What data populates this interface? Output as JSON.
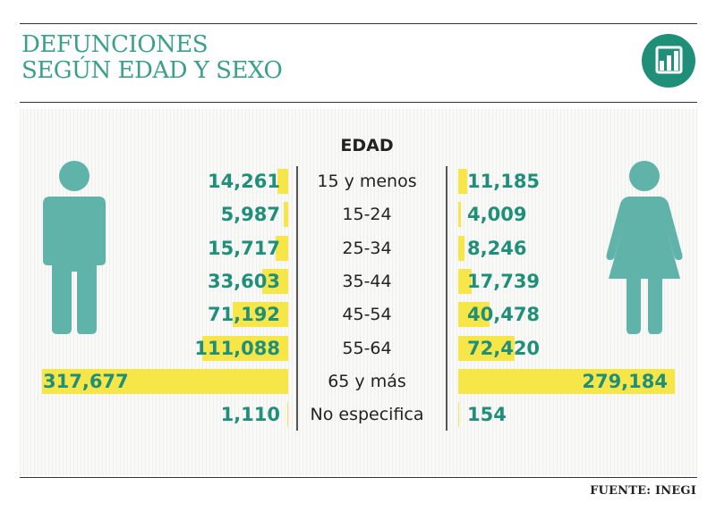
{
  "title": {
    "line1": "DEFUNCIONES",
    "line2": "SEGÚN EDAD Y SEXO"
  },
  "icon": {
    "name": "bar-chart-icon",
    "bg": "#1f8f78"
  },
  "colors": {
    "accent": "#3aa08c",
    "value": "#1f8f7a",
    "bar": "#f7e647",
    "figure": "#5fb3a9"
  },
  "source": "FUENTE: INEGI",
  "chart_data": {
    "type": "bar",
    "orientation": "horizontal",
    "category_header": "EDAD",
    "categories": [
      "15 y menos",
      "15-24",
      "25-34",
      "35-44",
      "45-54",
      "55-64",
      "65 y más",
      "No especifica"
    ],
    "male_labels": [
      "14,261",
      "5,987",
      "15,717",
      "33,603",
      "71,192",
      "111,088",
      "317,677",
      "1,110"
    ],
    "female_labels": [
      "11,185",
      "4,009",
      "8,246",
      "17,739",
      "40,478",
      "72,420",
      "279,184",
      "154"
    ],
    "series": [
      {
        "values": [
          14261,
          5987,
          15717,
          33603,
          71192,
          111088,
          317677,
          1110
        ]
      },
      {
        "values": [
          11185,
          4009,
          8246,
          17739,
          40478,
          72420,
          279184,
          154
        ]
      }
    ],
    "icons": [
      "male-figure-icon",
      "female-figure-icon"
    ]
  }
}
